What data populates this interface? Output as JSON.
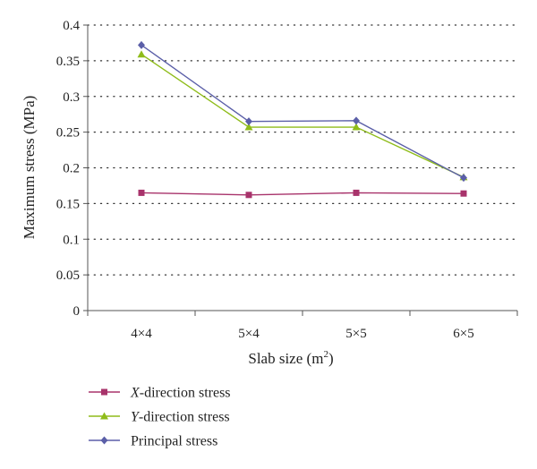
{
  "chart_data": {
    "type": "line",
    "categories": [
      "4×4",
      "5×4",
      "5×5",
      "6×5"
    ],
    "xlabel": "Slab size",
    "xlabel_unit": "m",
    "xlabel_unit_sup": "2",
    "ylabel": "Maximum stress (MPa)",
    "ylim": [
      0,
      0.4
    ],
    "yticks": [
      "0",
      "0.05",
      "0.1",
      "0.15",
      "0.2",
      "0.25",
      "0.3",
      "0.35",
      "0.4"
    ],
    "grid": true,
    "legend_position": "bottom",
    "series": [
      {
        "name_italic": "X",
        "name_rest": "-direction stress",
        "color": "#a8336b",
        "marker": "square",
        "values": [
          0.165,
          0.162,
          0.165,
          0.164
        ]
      },
      {
        "name_italic": "Y",
        "name_rest": "-direction stress",
        "color": "#8fbc1a",
        "marker": "triangle",
        "values": [
          0.359,
          0.257,
          0.257,
          0.187
        ]
      },
      {
        "name_italic": "",
        "name_rest": "Principal stress",
        "color": "#5b5fa8",
        "marker": "diamond",
        "values": [
          0.372,
          0.265,
          0.266,
          0.186
        ]
      }
    ]
  }
}
